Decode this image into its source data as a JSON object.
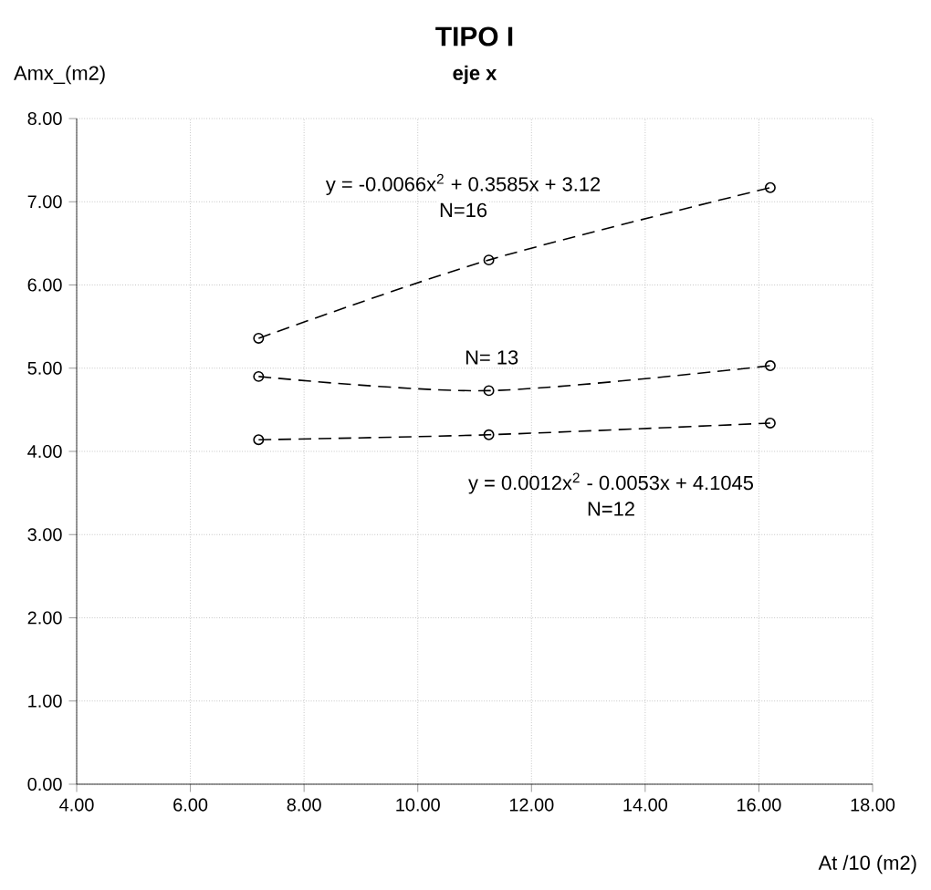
{
  "chart_data": {
    "type": "line",
    "title": "TIPO I",
    "subtitle": "eje x",
    "xlabel": "At /10 (m2)",
    "ylabel": "Amx_(m2)",
    "x": [
      7.2,
      11.25,
      16.2
    ],
    "series": [
      {
        "color": "#000000",
        "values": [
          5.36,
          6.3,
          7.17
        ]
      },
      {
        "color": "#000000",
        "values": [
          4.9,
          4.73,
          5.03
        ]
      },
      {
        "color": "#000000",
        "values": [
          4.14,
          4.2,
          4.34
        ]
      }
    ],
    "xlim": [
      4,
      18
    ],
    "ylim": [
      0,
      8
    ],
    "xticks": [
      {
        "value": 4,
        "label": "4.00"
      },
      {
        "value": 6,
        "label": "6.00"
      },
      {
        "value": 8,
        "label": "8.00"
      },
      {
        "value": 10,
        "label": "10.00"
      },
      {
        "value": 12,
        "label": "12.00"
      },
      {
        "value": 14,
        "label": "14.00"
      },
      {
        "value": 16,
        "label": "16.00"
      },
      {
        "value": 18,
        "label": "18.00"
      }
    ],
    "yticks": [
      {
        "value": 0,
        "label": "0.00"
      },
      {
        "value": 1,
        "label": "1.00"
      },
      {
        "value": 2,
        "label": "2.00"
      },
      {
        "value": 3,
        "label": "3.00"
      },
      {
        "value": 4,
        "label": "4.00"
      },
      {
        "value": 5,
        "label": "5.00"
      },
      {
        "value": 6,
        "label": "6.00"
      },
      {
        "value": 7,
        "label": "7.00"
      },
      {
        "value": 8,
        "label": "8.00"
      }
    ],
    "annotations": [
      "y = -0.0066x$^{2}$ + 0.3585x + 3.12",
      {
        "text": "N=16",
        "x": 10.8,
        "y": 6.9
      },
      {
        "text": "N= 13",
        "x": 11.3,
        "y": 5.13
      },
      "y = 0.0012x$^{2}$ - 0.0053x + 4.1045",
      {
        "text": "N=12",
        "x": 13.4,
        "y": 3.31
      }
    ],
    "grid": true,
    "marker": "circle",
    "line_style": "dashed"
  }
}
